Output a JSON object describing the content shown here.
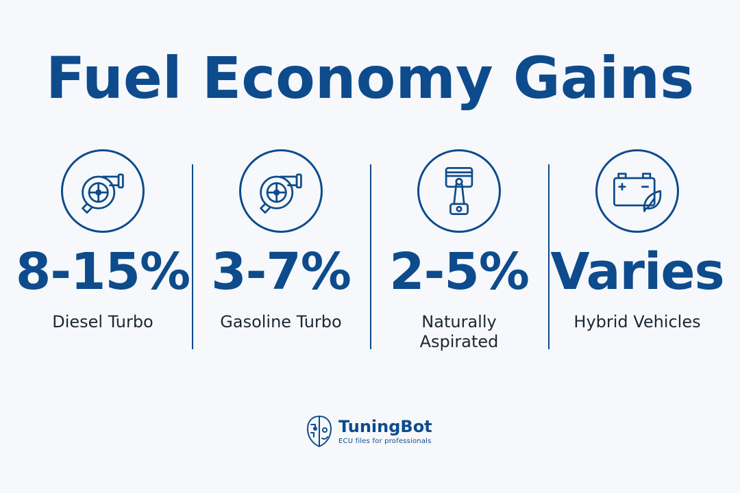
{
  "title": "Fuel Economy Gains",
  "stats": [
    {
      "icon": "turbocharger-icon",
      "value": "8-15%",
      "label": "Diesel Turbo"
    },
    {
      "icon": "turbocharger-icon",
      "value": "3-7%",
      "label": "Gasoline Turbo"
    },
    {
      "icon": "piston-icon",
      "value": "2-5%",
      "label": "Naturally Aspirated"
    },
    {
      "icon": "battery-leaf-icon",
      "value": "Varies",
      "label": "Hybrid Vehicles"
    }
  ],
  "brand": {
    "name": "TuningBot",
    "tagline": "ECU files for professionals",
    "icon": "robot-face-logo"
  },
  "colors": {
    "accent": "#0d4b8c",
    "background": "#f6f8fb",
    "text": "#1c2733"
  }
}
